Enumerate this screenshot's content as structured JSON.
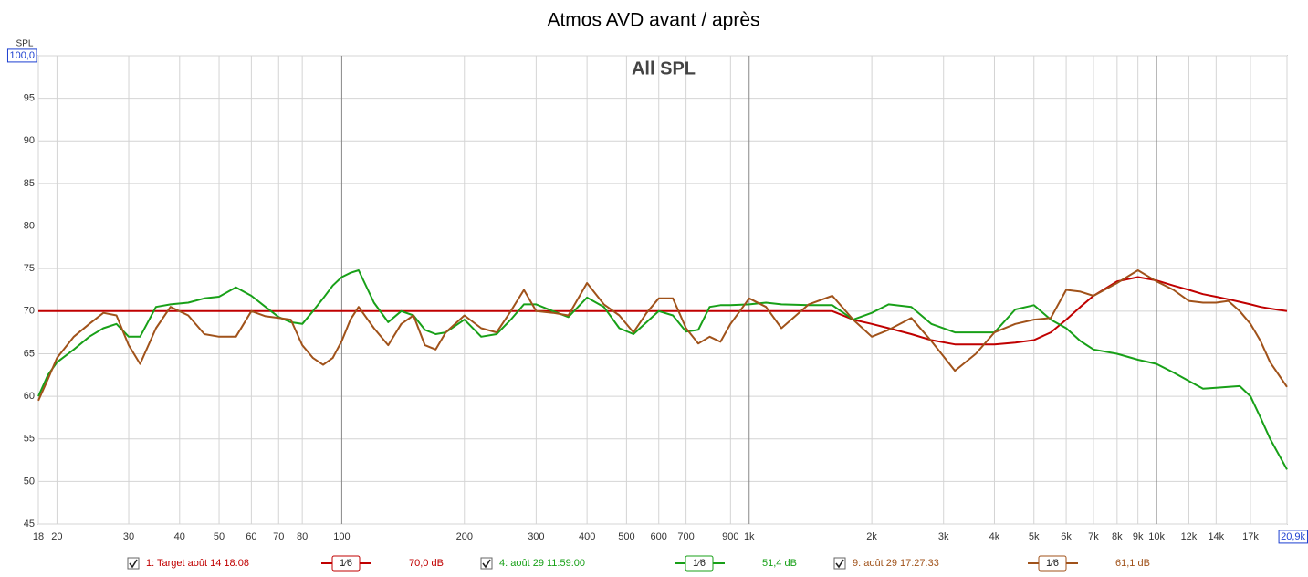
{
  "chart_data": {
    "type": "line",
    "title": "Atmos AVD avant / après",
    "subtitle": "All SPL",
    "y_label": "SPL",
    "log_x": true,
    "grid": true,
    "xlim": [
      18,
      20900
    ],
    "ylim": [
      45,
      100
    ],
    "yticks": [
      45,
      50,
      55,
      60,
      65,
      70,
      75,
      80,
      85,
      90,
      95,
      {
        "value": 100,
        "label": "100,0"
      }
    ],
    "xticks": [
      18,
      20,
      30,
      40,
      50,
      60,
      70,
      80,
      100,
      200,
      300,
      400,
      500,
      600,
      700,
      900,
      {
        "value": 1000,
        "label": "1k"
      },
      {
        "value": 2000,
        "label": "2k"
      },
      {
        "value": 3000,
        "label": "3k"
      },
      {
        "value": 4000,
        "label": "4k"
      },
      {
        "value": 5000,
        "label": "5k"
      },
      {
        "value": 6000,
        "label": "6k"
      },
      {
        "value": 7000,
        "label": "7k"
      },
      {
        "value": 8000,
        "label": "8k"
      },
      {
        "value": 9000,
        "label": "9k"
      },
      {
        "value": 10000,
        "label": "10k"
      },
      {
        "value": 12000,
        "label": "12k"
      },
      {
        "value": 14000,
        "label": "14k"
      },
      {
        "value": 17000,
        "label": "17k"
      },
      {
        "value": 20900,
        "label": "20,9k"
      }
    ],
    "x": [
      18,
      19,
      20,
      22,
      24,
      26,
      28,
      30,
      32,
      35,
      38,
      42,
      46,
      50,
      55,
      60,
      65,
      70,
      75,
      80,
      85,
      90,
      95,
      100,
      105,
      110,
      120,
      130,
      140,
      150,
      160,
      170,
      180,
      200,
      220,
      240,
      260,
      280,
      300,
      330,
      360,
      400,
      440,
      480,
      520,
      560,
      600,
      650,
      700,
      750,
      800,
      850,
      900,
      1000,
      1100,
      1200,
      1400,
      1600,
      1800,
      2000,
      2200,
      2500,
      2800,
      3200,
      3600,
      4000,
      4500,
      5000,
      5500,
      6000,
      6500,
      7000,
      8000,
      9000,
      10000,
      11000,
      12000,
      13000,
      14000,
      15000,
      16000,
      17000,
      18000,
      19000,
      20900
    ],
    "series": [
      {
        "name": "1: Target août 14 18:08",
        "smoothing": "1⁄6",
        "level": "70,0 dB",
        "color": "#c00000",
        "values": [
          70,
          70,
          70,
          70,
          70,
          70,
          70,
          70,
          70,
          70,
          70,
          70,
          70,
          70,
          70,
          70,
          70,
          70,
          70,
          70,
          70,
          70,
          70,
          70,
          70,
          70,
          70,
          70,
          70,
          70,
          70,
          70,
          70,
          70,
          70,
          70,
          70,
          70,
          70,
          70,
          70,
          70,
          70,
          70,
          70,
          70,
          70,
          70,
          70,
          70,
          70,
          70,
          70,
          70,
          70,
          70,
          70,
          70,
          69,
          68.5,
          68,
          67.3,
          66.6,
          66.1,
          66.1,
          66.1,
          66.3,
          66.6,
          67.5,
          69,
          70.5,
          71.8,
          73.5,
          74,
          73.6,
          73,
          72.5,
          72,
          71.7,
          71.4,
          71.1,
          70.8,
          70.5,
          70.3,
          70
        ]
      },
      {
        "name": "4: août 29 11:59:00",
        "smoothing": "1⁄6",
        "level": "51,4 dB",
        "color": "#18a018",
        "values": [
          60,
          62.5,
          64,
          65.5,
          67,
          68,
          68.5,
          67,
          67,
          70.5,
          70.8,
          71,
          71.5,
          71.7,
          72.8,
          71.8,
          70.5,
          69.3,
          68.7,
          68.5,
          70,
          71.5,
          73,
          74,
          74.5,
          74.8,
          71,
          68.7,
          70,
          69.5,
          67.8,
          67.3,
          67.5,
          69,
          67,
          67.3,
          69,
          70.8,
          70.8,
          70,
          69.3,
          71.6,
          70.5,
          68,
          67.3,
          68.7,
          70,
          69.5,
          67.6,
          67.8,
          70.5,
          70.7,
          70.7,
          70.8,
          71,
          70.8,
          70.7,
          70.7,
          69,
          69.8,
          70.8,
          70.5,
          68.5,
          67.5,
          67.5,
          67.5,
          70.2,
          70.7,
          69,
          68,
          66.5,
          65.5,
          65,
          64.3,
          63.8,
          62.8,
          61.8,
          60.9,
          61,
          61.1,
          61.2,
          60,
          57.5,
          55,
          51.4
        ]
      },
      {
        "name": "9: août 29 17:27:33",
        "smoothing": "1⁄6",
        "level": "61,1 dB",
        "color": "#a0521a",
        "values": [
          59.5,
          62,
          64.5,
          67,
          68.5,
          69.8,
          69.5,
          66,
          63.8,
          68,
          70.5,
          69.5,
          67.3,
          67,
          67,
          70,
          69.4,
          69.2,
          69,
          66,
          64.5,
          63.7,
          64.5,
          66.5,
          69,
          70.5,
          68,
          66,
          68.5,
          69.5,
          66,
          65.5,
          67.5,
          69.5,
          68,
          67.5,
          70,
          72.5,
          70,
          69.8,
          69.5,
          73.3,
          70.8,
          69.5,
          67.5,
          69.8,
          71.5,
          71.5,
          68,
          66.2,
          67,
          66.4,
          68.5,
          71.5,
          70.5,
          68,
          70.8,
          71.8,
          69,
          67,
          67.8,
          69.2,
          66.5,
          63,
          65,
          67.5,
          68.5,
          69,
          69.2,
          72.5,
          72.3,
          71.8,
          73.3,
          74.8,
          73.5,
          72.5,
          71.2,
          71,
          71,
          71.2,
          70,
          68.5,
          66.5,
          64,
          61.1
        ]
      }
    ]
  }
}
